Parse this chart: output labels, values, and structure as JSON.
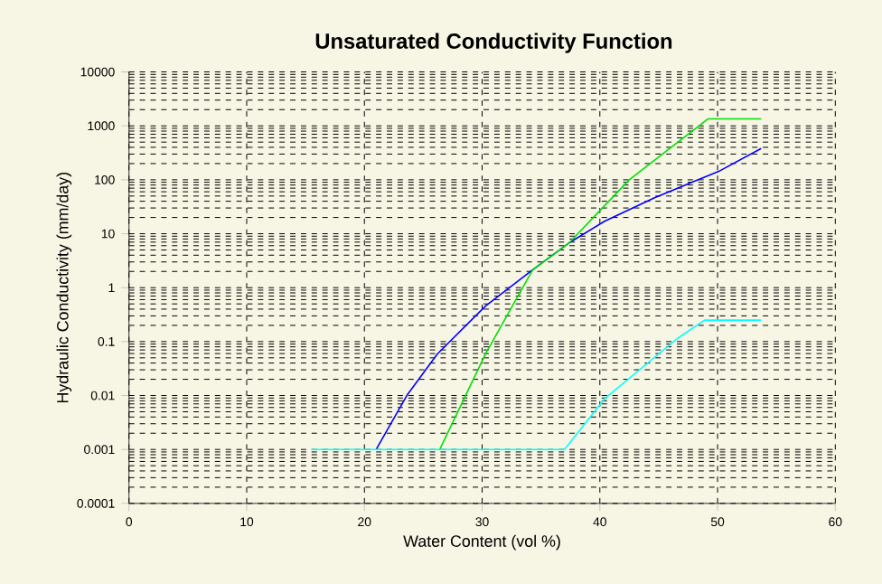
{
  "chart_data": {
    "type": "line",
    "title": "Unsaturated Conductivity Function",
    "xlabel": "Water Content (vol %)",
    "ylabel": "Hydraulic Conductivity (mm/day)",
    "log": "y",
    "grid": true,
    "line_style": "solid",
    "marker": "none",
    "xlim": [
      0,
      60
    ],
    "xticks": [
      0,
      10,
      20,
      30,
      40,
      50,
      60
    ],
    "ylim": [
      0.0001,
      10000
    ],
    "yticks": [
      0.0001,
      0.001,
      0.01,
      0.1,
      1,
      10,
      100,
      1000,
      10000
    ],
    "series": [
      {
        "color": "#0000ff",
        "x": [
          21,
          23.6,
          26.2,
          30.3,
          34.3,
          37.4,
          40.4,
          44.6,
          50.2,
          53.7
        ],
        "values": [
          0.001,
          0.01,
          0.059,
          0.46,
          2.15,
          6.8,
          17,
          46,
          147,
          380
        ]
      },
      {
        "color": "#00e000",
        "x": [
          26.4,
          30.3,
          34.3,
          37.4,
          42.5,
          49.2,
          53.7
        ],
        "values": [
          0.001,
          0.06,
          2.15,
          6.8,
          100,
          1350,
          1350
        ]
      },
      {
        "color": "#00ffff",
        "x": [
          15.5,
          37.0,
          40.4,
          46.6,
          48.9,
          53.7
        ],
        "values": [
          0.001,
          0.001,
          0.0087,
          0.115,
          0.25,
          0.25
        ]
      }
    ]
  }
}
